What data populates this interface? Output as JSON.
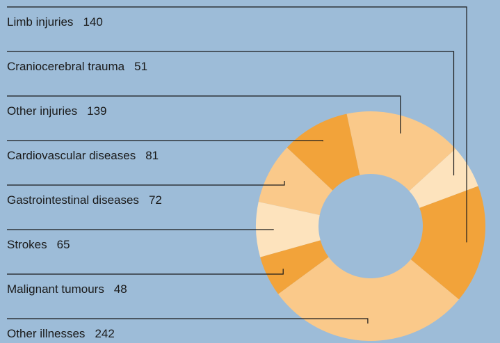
{
  "chart_data": {
    "type": "donut",
    "categories": [
      "Limb injuries",
      "Craniocerebral trauma",
      "Other injuries",
      "Cardiovascular diseases",
      "Gastrointestinal diseases",
      "Strokes",
      "Malignant tumours",
      "Other illnesses"
    ],
    "values": [
      140,
      51,
      139,
      81,
      72,
      65,
      48,
      242
    ],
    "colors": [
      "#f2a33a",
      "#fde3bd",
      "#fac98a",
      "#f2a33a",
      "#fac98a",
      "#fde3bd",
      "#f2a33a",
      "#fac98a"
    ]
  }
}
